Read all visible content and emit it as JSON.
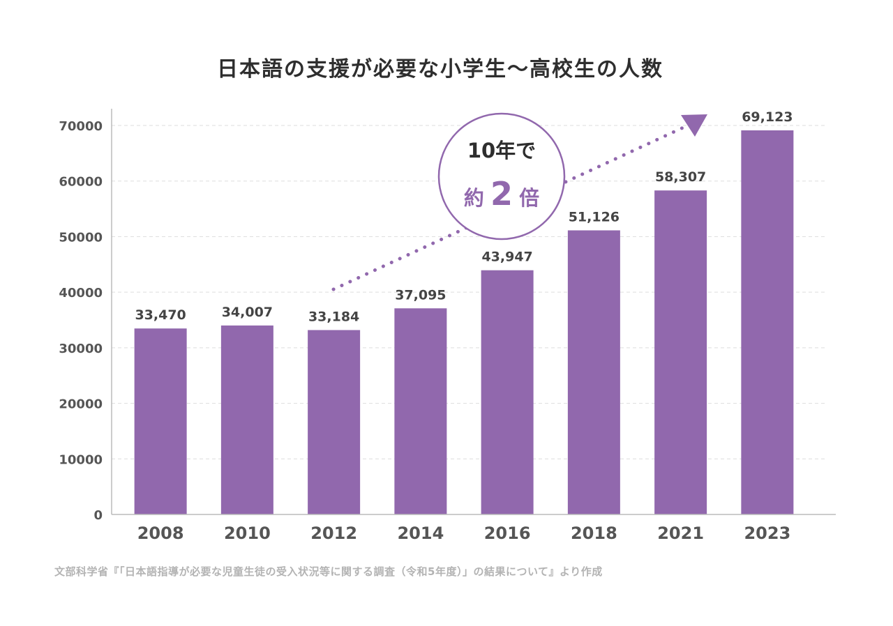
{
  "title": "日本語の支援が必要な小学生～高校生の人数",
  "source": "文部科学省『「日本語指導が必要な児童生徒の受入状況等に関する調査（令和5年度）」の結果について』より作成",
  "colors": {
    "bar": "#9168ad",
    "grid": "#dddddd",
    "axis": "#bbbbbb",
    "arrow": "#9168ad"
  },
  "annotation": {
    "line1": "10年で",
    "prefix": "約",
    "number": "2",
    "suffix": "倍"
  },
  "chart_data": {
    "type": "bar",
    "title": "日本語の支援が必要な小学生～高校生の人数",
    "categories": [
      "2008",
      "2010",
      "2012",
      "2014",
      "2016",
      "2018",
      "2021",
      "2023"
    ],
    "values": [
      33470,
      34007,
      33184,
      37095,
      43947,
      51126,
      58307,
      69123
    ],
    "data_labels": [
      "33,470",
      "34,007",
      "33,184",
      "37,095",
      "43,947",
      "51,126",
      "58,307",
      "69,123"
    ],
    "y_ticks": [
      0,
      10000,
      20000,
      30000,
      40000,
      50000,
      60000,
      70000
    ],
    "ylim": [
      0,
      70000
    ],
    "grid": true
  }
}
